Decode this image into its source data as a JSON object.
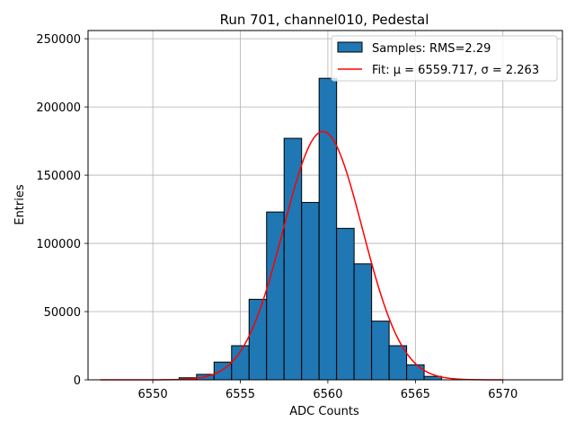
{
  "chart_data": {
    "type": "bar",
    "title": "Run 701, channel010, Pedestal",
    "xlabel": "ADC Counts",
    "ylabel": "Entries",
    "xlim": [
      6546.3,
      6573.4
    ],
    "ylim": [
      0,
      256000
    ],
    "xticks": [
      6550,
      6555,
      6560,
      6565,
      6570
    ],
    "yticks": [
      0,
      50000,
      100000,
      150000,
      200000,
      250000
    ],
    "grid": true,
    "legend_position": "top-right",
    "bar_color": "#1f77b4",
    "fit_color": "#ff0000",
    "bins": [
      {
        "x": 6552,
        "value": 1500
      },
      {
        "x": 6553,
        "value": 4000
      },
      {
        "x": 6554,
        "value": 13000
      },
      {
        "x": 6555,
        "value": 25000
      },
      {
        "x": 6556,
        "value": 59000
      },
      {
        "x": 6557,
        "value": 123000
      },
      {
        "x": 6558,
        "value": 177000
      },
      {
        "x": 6559,
        "value": 130000
      },
      {
        "x": 6560,
        "value": 221000
      },
      {
        "x": 6561,
        "value": 111000
      },
      {
        "x": 6562,
        "value": 85000
      },
      {
        "x": 6563,
        "value": 43000
      },
      {
        "x": 6564,
        "value": 25000
      },
      {
        "x": 6565,
        "value": 11000
      },
      {
        "x": 6566,
        "value": 2500
      }
    ],
    "bin_width": 1,
    "series": [
      {
        "name": "Samples: RMS=2.29",
        "kind": "histogram"
      },
      {
        "name": "Fit: μ = 6559.717, σ = 2.263",
        "kind": "gaussian-fit",
        "mu": 6559.717,
        "sigma": 2.263,
        "peak": 182000,
        "x_range": [
          6547,
          6570
        ]
      }
    ]
  }
}
